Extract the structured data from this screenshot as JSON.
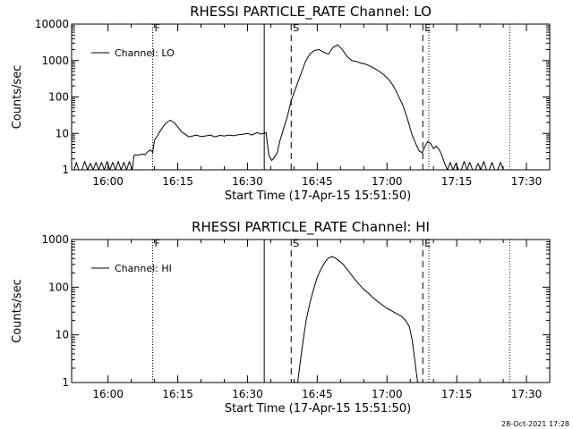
{
  "chart_data": [
    {
      "type": "line",
      "title": "RHESSI PARTICLE_RATE Channel: LO",
      "xlabel": "Start Time (17-Apr-15 15:51:50)",
      "ylabel": "Counts/sec",
      "y_scale": "log",
      "ylim": [
        1,
        10000
      ],
      "yticks": [
        1,
        10,
        100,
        1000,
        10000
      ],
      "ytick_labels": [
        "1",
        "10",
        "100",
        "1000",
        "10000"
      ],
      "xlim_minutes": [
        -7.83,
        95
      ],
      "xticks": [
        0,
        15,
        30,
        45,
        60,
        75,
        90
      ],
      "xtick_labels": [
        "16:00",
        "16:15",
        "16:30",
        "16:45",
        "17:00",
        "17:15",
        "17:30"
      ],
      "legend": {
        "label": "Channel: LO",
        "position": "top-left"
      },
      "markers": [
        {
          "label": "F",
          "x": 9.6,
          "style": "dotted"
        },
        {
          "label": "",
          "x": 33.6,
          "style": "solid"
        },
        {
          "label": "S",
          "x": 39.4,
          "style": "dashed"
        },
        {
          "label": "E",
          "x": 67.7,
          "style": "dashed"
        },
        {
          "label": "",
          "x": 69.0,
          "style": "dotted"
        },
        {
          "label": "",
          "x": 86.4,
          "style": "dotted"
        }
      ],
      "series": [
        {
          "x": [
            -7.3,
            -6.8,
            -6.3,
            -5.6,
            -5.0,
            -4.4,
            -3.8,
            -3.2,
            -2.6,
            -2.0,
            -1.4,
            -0.8,
            -0.2,
            0.4,
            1.0,
            1.6,
            2.2,
            2.8,
            3.4,
            4.0,
            4.6,
            5.2,
            5.6,
            6.0,
            6.4,
            6.8,
            7.4,
            8.0,
            8.6,
            9.2,
            9.6,
            10.0,
            10.6,
            11.2,
            11.8,
            12.6,
            13.4,
            14.2,
            15.0,
            15.8,
            16.6,
            17.4,
            18.2,
            19.0,
            20.0,
            21.0,
            22.0,
            23.0,
            24.0,
            25.0,
            26.0,
            27.0,
            28.0,
            29.0,
            30.0,
            31.0,
            32.0,
            33.0,
            34.0,
            34.6,
            35.2,
            35.8,
            36.4,
            37.0,
            37.8,
            38.6,
            39.4,
            40.4,
            41.4,
            42.4,
            43.4,
            44.4,
            45.4,
            46.4,
            47.4,
            48.4,
            49.4,
            50.4,
            51.4,
            52.4,
            53.4,
            54.4,
            55.4,
            56.4,
            57.4,
            58.4,
            59.4,
            60.4,
            61.4,
            62.4,
            63.4,
            64.4,
            65.4,
            66.4,
            67.0,
            67.6,
            68.2,
            68.8,
            69.4,
            70.0,
            70.6,
            71.2,
            71.8,
            72.4,
            73.0,
            73.6,
            74.2,
            74.8,
            75.4,
            76.0,
            76.6,
            77.2,
            77.8,
            78.4,
            79.0,
            79.6,
            80.2,
            80.8,
            81.4,
            82.0,
            82.6,
            83.2,
            83.8,
            84.4,
            85.0,
            85.6
          ],
          "values": [
            1,
            1.6,
            1,
            1,
            1.7,
            1,
            1.5,
            1,
            1.6,
            1,
            1.6,
            1,
            1.7,
            1,
            1.6,
            1,
            1.7,
            1,
            1.6,
            1,
            1.7,
            1,
            2.5,
            2.6,
            2.5,
            2.6,
            2.7,
            2.6,
            3.2,
            3.5,
            3.0,
            6.5,
            8.5,
            11.5,
            15.0,
            20.0,
            23.0,
            20.0,
            15.0,
            11.0,
            9.5,
            8.0,
            8.5,
            9.0,
            8.2,
            8.5,
            9.0,
            8.0,
            8.8,
            8.5,
            9.0,
            8.6,
            9.2,
            9.5,
            10.0,
            9.0,
            10.5,
            9.6,
            10.5,
            2.5,
            1.8,
            2.2,
            3.0,
            6.5,
            14,
            30,
            80,
            180,
            400,
            900,
            1500,
            1900,
            2000,
            1700,
            1500,
            2300,
            2700,
            2000,
            1300,
            1000,
            950,
            850,
            800,
            700,
            600,
            500,
            400,
            300,
            200,
            110,
            60,
            25,
            9,
            4.5,
            3.2,
            3.0,
            4.5,
            6.0,
            5.2,
            3.8,
            4.5,
            3.6,
            2.5,
            1.5,
            1,
            1.6,
            1,
            1.5,
            1,
            1,
            1.7,
            1,
            1.6,
            1,
            1,
            1.5,
            1,
            1.7,
            1,
            1,
            1.6,
            1,
            1,
            1.6,
            1,
            1
          ]
        }
      ]
    },
    {
      "type": "line",
      "title": "RHESSI PARTICLE_RATE Channel: HI",
      "xlabel": "Start Time (17-Apr-15 15:51:50)",
      "ylabel": "Counts/sec",
      "y_scale": "log",
      "ylim": [
        1,
        1000
      ],
      "yticks": [
        1,
        10,
        100,
        1000
      ],
      "ytick_labels": [
        "1",
        "10",
        "100",
        "1000"
      ],
      "xlim_minutes": [
        -7.83,
        95
      ],
      "xticks": [
        0,
        15,
        30,
        45,
        60,
        75,
        90
      ],
      "xtick_labels": [
        "16:00",
        "16:15",
        "16:30",
        "16:45",
        "17:00",
        "17:15",
        "17:30"
      ],
      "legend": {
        "label": "Channel: HI",
        "position": "top-left"
      },
      "markers": [
        {
          "label": "F",
          "x": 9.6,
          "style": "dotted"
        },
        {
          "label": "",
          "x": 33.6,
          "style": "solid"
        },
        {
          "label": "S",
          "x": 39.4,
          "style": "dashed"
        },
        {
          "label": "E",
          "x": 67.7,
          "style": "dashed"
        },
        {
          "label": "",
          "x": 69.0,
          "style": "dotted"
        },
        {
          "label": "",
          "x": 86.4,
          "style": "dotted"
        }
      ],
      "series": [
        {
          "x": [
            40.8,
            41.4,
            42.0,
            42.6,
            43.4,
            44.2,
            45.0,
            45.8,
            46.6,
            47.4,
            48.2,
            49.0,
            49.8,
            50.6,
            51.4,
            52.2,
            53.0,
            54.0,
            55.0,
            56.0,
            57.0,
            58.0,
            59.0,
            60.0,
            61.0,
            62.0,
            63.0,
            64.0,
            64.8,
            65.4,
            65.8,
            66.2,
            66.6
          ],
          "values": [
            1,
            3,
            8,
            20,
            45,
            90,
            160,
            240,
            330,
            410,
            440,
            400,
            350,
            300,
            240,
            190,
            150,
            115,
            90,
            75,
            60,
            50,
            42,
            36,
            32,
            28,
            25,
            20,
            15,
            8,
            4,
            2,
            1
          ]
        }
      ]
    }
  ],
  "footer": {
    "timestamp": "28-Oct-2021 17:28"
  }
}
